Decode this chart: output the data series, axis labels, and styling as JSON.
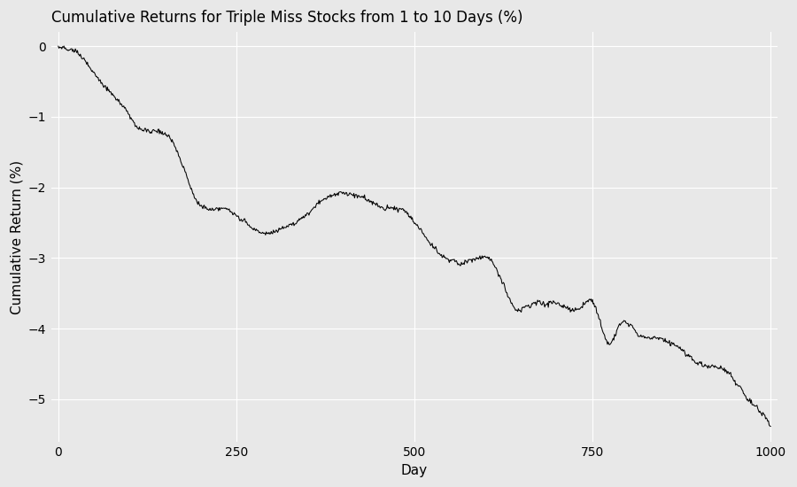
{
  "title": "Cumulative Returns for Triple Miss Stocks from 1 to 10 Days (%)",
  "xlabel": "Day",
  "ylabel": "Cumulative Return (%)",
  "xlim": [
    -10,
    1010
  ],
  "ylim": [
    -5.6,
    0.2
  ],
  "xticks": [
    0,
    250,
    500,
    750,
    1000
  ],
  "yticks": [
    0,
    -1,
    -2,
    -3,
    -4,
    -5
  ],
  "background_color": "#E8E8E8",
  "line_color": "#000000",
  "grid_color": "#FFFFFF",
  "title_fontsize": 12,
  "axis_fontsize": 11,
  "tick_fontsize": 10
}
